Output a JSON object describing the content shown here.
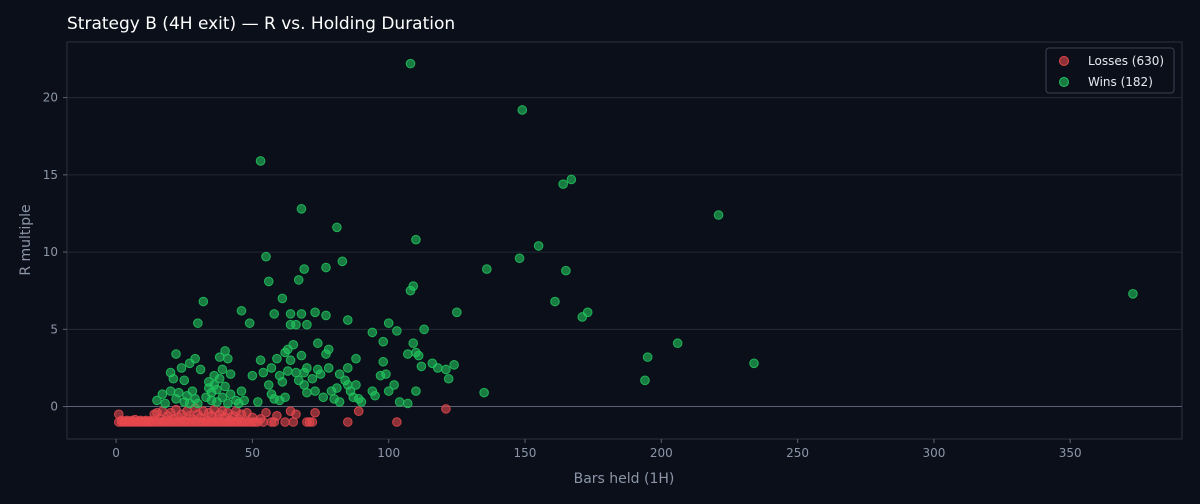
{
  "chart_data": {
    "type": "scatter",
    "title": "Strategy B (4H exit) — R vs. Holding Duration",
    "xlabel": "Bars held (1H)",
    "ylabel": "R multiple",
    "xlim": [
      -18,
      391
    ],
    "ylim": [
      -2.1,
      23.6
    ],
    "x_ticks": [
      0,
      50,
      100,
      150,
      200,
      250,
      300,
      350
    ],
    "y_ticks": [
      0,
      5,
      10,
      15,
      20
    ],
    "grid": "horizontal",
    "reference_line_y": 0,
    "legend_position": "top-right",
    "colors": {
      "background": "#0b0f19",
      "grid": "#232a36",
      "losses": "#e5484d",
      "wins": "#22c55e"
    },
    "series": [
      {
        "name": "Losses (630)",
        "color": "#e5484d",
        "points": [
          [
            1,
            -1
          ],
          [
            1,
            -0.5
          ],
          [
            2,
            -1
          ],
          [
            2,
            -0.9
          ],
          [
            3,
            -1
          ],
          [
            3,
            -0.95
          ],
          [
            4,
            -1
          ],
          [
            4,
            -0.9
          ],
          [
            5,
            -1
          ],
          [
            5,
            -0.95
          ],
          [
            6,
            -1
          ],
          [
            6,
            -0.9
          ],
          [
            7,
            -1
          ],
          [
            7,
            -0.85
          ],
          [
            8,
            -1
          ],
          [
            8,
            -0.95
          ],
          [
            9,
            -1
          ],
          [
            9,
            -0.9
          ],
          [
            10,
            -1
          ],
          [
            10,
            -0.95
          ],
          [
            11,
            -1
          ],
          [
            11,
            -0.9
          ],
          [
            12,
            -1
          ],
          [
            12,
            -0.95
          ],
          [
            13,
            -1
          ],
          [
            13,
            -0.9
          ],
          [
            14,
            -1
          ],
          [
            14,
            -0.5
          ],
          [
            15,
            -1
          ],
          [
            15,
            -0.4
          ],
          [
            16,
            -1
          ],
          [
            16,
            -0.8
          ],
          [
            17,
            -1
          ],
          [
            17,
            -0.3
          ],
          [
            18,
            -1
          ],
          [
            18,
            -0.9
          ],
          [
            19,
            -1
          ],
          [
            19,
            -0.6
          ],
          [
            20,
            -1
          ],
          [
            20,
            -0.4
          ],
          [
            21,
            -1
          ],
          [
            21,
            -0.8
          ],
          [
            22,
            -1
          ],
          [
            22,
            -0.2
          ],
          [
            23,
            -1
          ],
          [
            23,
            -0.7
          ],
          [
            24,
            -1
          ],
          [
            24,
            -0.5
          ],
          [
            25,
            -1
          ],
          [
            25,
            -0.9
          ],
          [
            26,
            -1
          ],
          [
            26,
            -0.3
          ],
          [
            27,
            -1
          ],
          [
            27,
            -0.6
          ],
          [
            28,
            -1
          ],
          [
            28,
            -0.8
          ],
          [
            29,
            -1
          ],
          [
            29,
            -0.1
          ],
          [
            30,
            -1
          ],
          [
            30,
            -0.5
          ],
          [
            31,
            -1
          ],
          [
            31,
            -0.7
          ],
          [
            32,
            -1
          ],
          [
            32,
            -0.3
          ],
          [
            33,
            -1
          ],
          [
            33,
            -0.9
          ],
          [
            34,
            -1
          ],
          [
            34,
            -0.4
          ],
          [
            35,
            -1
          ],
          [
            35,
            -0.6
          ],
          [
            36,
            -1
          ],
          [
            36,
            -0.2
          ],
          [
            37,
            -1
          ],
          [
            37,
            -0.8
          ],
          [
            38,
            -1
          ],
          [
            38,
            -0.5
          ],
          [
            39,
            -1
          ],
          [
            39,
            -0.3
          ],
          [
            40,
            -1
          ],
          [
            40,
            -0.7
          ],
          [
            41,
            -1
          ],
          [
            41,
            -0.4
          ],
          [
            42,
            -1
          ],
          [
            42,
            -0.9
          ],
          [
            43,
            -1
          ],
          [
            43,
            -0.6
          ],
          [
            44,
            -1
          ],
          [
            44,
            -0.3
          ],
          [
            45,
            -1
          ],
          [
            45,
            -0.8
          ],
          [
            46,
            -1
          ],
          [
            46,
            -0.5
          ],
          [
            47,
            -1
          ],
          [
            48,
            -1
          ],
          [
            48,
            -0.4
          ],
          [
            49,
            -1
          ],
          [
            50,
            -1
          ],
          [
            50,
            -0.7
          ],
          [
            51,
            -1
          ],
          [
            52,
            -1
          ],
          [
            53,
            -0.8
          ],
          [
            54,
            -1
          ],
          [
            55,
            -0.4
          ],
          [
            57,
            -1
          ],
          [
            58,
            -1
          ],
          [
            59,
            -0.6
          ],
          [
            62,
            -1
          ],
          [
            64,
            -0.3
          ],
          [
            65,
            -1
          ],
          [
            66,
            -0.5
          ],
          [
            70,
            -1
          ],
          [
            71,
            -1
          ],
          [
            72,
            -1
          ],
          [
            73,
            -0.4
          ],
          [
            85,
            -1
          ],
          [
            89,
            -0.3
          ],
          [
            103,
            -1
          ],
          [
            121,
            -0.15
          ]
        ]
      },
      {
        "name": "Wins (182)",
        "color": "#22c55e",
        "points": [
          [
            15,
            0.4
          ],
          [
            17,
            0.8
          ],
          [
            18,
            0.2
          ],
          [
            20,
            1.0
          ],
          [
            20,
            2.2
          ],
          [
            21,
            1.8
          ],
          [
            22,
            0.5
          ],
          [
            22,
            3.4
          ],
          [
            23,
            0.9
          ],
          [
            24,
            2.5
          ],
          [
            25,
            0.3
          ],
          [
            25,
            1.7
          ],
          [
            26,
            0.7
          ],
          [
            27,
            0.2
          ],
          [
            27,
            2.8
          ],
          [
            28,
            1.0
          ],
          [
            29,
            0.5
          ],
          [
            29,
            3.1
          ],
          [
            30,
            0.2
          ],
          [
            30,
            5.4
          ],
          [
            31,
            2.4
          ],
          [
            32,
            6.8
          ],
          [
            33,
            0.6
          ],
          [
            34,
            1.2
          ],
          [
            34,
            1.6
          ],
          [
            35,
            0.4
          ],
          [
            35,
            0.9
          ],
          [
            36,
            1.4
          ],
          [
            36,
            2.0
          ],
          [
            37,
            0.3
          ],
          [
            37,
            1.1
          ],
          [
            38,
            3.2
          ],
          [
            38,
            1.8
          ],
          [
            39,
            0.6
          ],
          [
            39,
            2.4
          ],
          [
            40,
            3.6
          ],
          [
            40,
            1.3
          ],
          [
            41,
            0.2
          ],
          [
            41,
            3.1
          ],
          [
            42,
            0.8
          ],
          [
            42,
            2.1
          ],
          [
            44,
            0.4
          ],
          [
            45,
            0.2
          ],
          [
            46,
            6.2
          ],
          [
            46,
            1.0
          ],
          [
            47,
            0.4
          ],
          [
            49,
            5.4
          ],
          [
            50,
            2.0
          ],
          [
            52,
            0.3
          ],
          [
            53,
            15.9
          ],
          [
            53,
            3.0
          ],
          [
            54,
            2.2
          ],
          [
            55,
            9.7
          ],
          [
            56,
            8.1
          ],
          [
            56,
            1.4
          ],
          [
            57,
            2.5
          ],
          [
            57,
            0.8
          ],
          [
            58,
            6.0
          ],
          [
            58,
            0.5
          ],
          [
            59,
            3.1
          ],
          [
            60,
            2.0
          ],
          [
            60,
            0.4
          ],
          [
            61,
            7.0
          ],
          [
            61,
            1.6
          ],
          [
            62,
            3.5
          ],
          [
            62,
            0.6
          ],
          [
            63,
            3.7
          ],
          [
            63,
            2.3
          ],
          [
            64,
            5.3
          ],
          [
            64,
            3.0
          ],
          [
            64,
            6.0
          ],
          [
            65,
            4.0
          ],
          [
            66,
            5.3
          ],
          [
            66,
            2.2
          ],
          [
            67,
            8.2
          ],
          [
            67,
            1.7
          ],
          [
            68,
            12.8
          ],
          [
            68,
            6.0
          ],
          [
            68,
            3.3
          ],
          [
            69,
            8.9
          ],
          [
            69,
            2.2
          ],
          [
            69,
            1.4
          ],
          [
            70,
            5.3
          ],
          [
            70,
            2.5
          ],
          [
            70,
            0.9
          ],
          [
            72,
            1.8
          ],
          [
            73,
            6.1
          ],
          [
            73,
            1.0
          ],
          [
            74,
            4.1
          ],
          [
            74,
            2.4
          ],
          [
            75,
            2.1
          ],
          [
            76,
            0.6
          ],
          [
            77,
            9.0
          ],
          [
            77,
            5.9
          ],
          [
            77,
            3.4
          ],
          [
            78,
            3.7
          ],
          [
            78,
            2.5
          ],
          [
            79,
            1.0
          ],
          [
            80,
            0.5
          ],
          [
            81,
            11.6
          ],
          [
            81,
            1.2
          ],
          [
            82,
            2.1
          ],
          [
            82,
            0.3
          ],
          [
            83,
            9.4
          ],
          [
            84,
            1.7
          ],
          [
            85,
            5.6
          ],
          [
            85,
            2.5
          ],
          [
            85,
            1.4
          ],
          [
            86,
            1.0
          ],
          [
            87,
            0.6
          ],
          [
            88,
            3.1
          ],
          [
            88,
            1.4
          ],
          [
            89,
            0.5
          ],
          [
            90,
            0.3
          ],
          [
            94,
            4.8
          ],
          [
            94,
            1.0
          ],
          [
            95,
            0.7
          ],
          [
            97,
            2.0
          ],
          [
            98,
            4.2
          ],
          [
            98,
            2.9
          ],
          [
            99,
            2.1
          ],
          [
            100,
            1.0
          ],
          [
            100,
            5.4
          ],
          [
            102,
            1.4
          ],
          [
            103,
            4.9
          ],
          [
            104,
            0.3
          ],
          [
            107,
            0.2
          ],
          [
            107,
            3.4
          ],
          [
            108,
            7.5
          ],
          [
            108,
            22.2
          ],
          [
            109,
            7.8
          ],
          [
            109,
            4.1
          ],
          [
            110,
            10.8
          ],
          [
            110,
            3.5
          ],
          [
            110,
            1.0
          ],
          [
            111,
            3.3
          ],
          [
            112,
            2.6
          ],
          [
            113,
            5.0
          ],
          [
            116,
            2.8
          ],
          [
            118,
            2.5
          ],
          [
            121,
            2.4
          ],
          [
            122,
            1.8
          ],
          [
            124,
            2.7
          ],
          [
            125,
            6.1
          ],
          [
            135,
            0.9
          ],
          [
            136,
            8.9
          ],
          [
            148,
            9.6
          ],
          [
            149,
            19.2
          ],
          [
            155,
            10.4
          ],
          [
            161,
            6.8
          ],
          [
            164,
            14.4
          ],
          [
            165,
            8.8
          ],
          [
            167,
            14.7
          ],
          [
            171,
            5.8
          ],
          [
            173,
            6.1
          ],
          [
            194,
            1.7
          ],
          [
            195,
            3.2
          ],
          [
            206,
            4.1
          ],
          [
            221,
            12.4
          ],
          [
            234,
            2.8
          ],
          [
            373,
            7.3
          ]
        ]
      }
    ]
  }
}
